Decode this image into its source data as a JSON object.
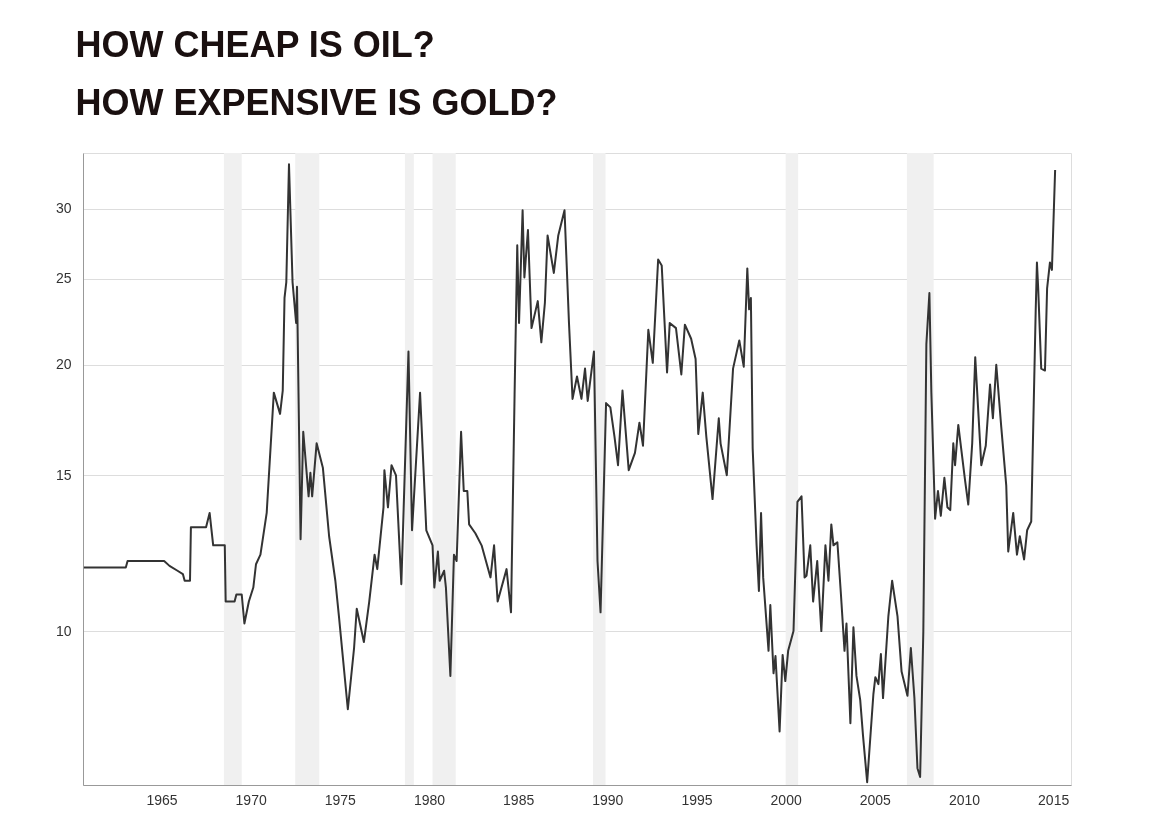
{
  "chart_data": {
    "type": "line",
    "title": "HOW CHEAP IS OIL?",
    "subtitle": "HOW EXPENSIVE IS GOLD?",
    "x": [
      1960.65,
      1963.0,
      1963.1,
      1965.15,
      1965.45,
      1965.9,
      1966.2,
      1966.3,
      1966.6,
      1966.65,
      1967.5,
      1967.7,
      1967.9,
      1968.55,
      1968.6,
      1969.1,
      1969.2,
      1969.5,
      1969.65,
      1969.9,
      1970.15,
      1970.3,
      1970.55,
      1970.9,
      1971.3,
      1971.65,
      1971.8,
      1971.9,
      1972.0,
      1972.15,
      1972.35,
      1972.55,
      1972.6,
      1972.8,
      1972.95,
      1973.25,
      1973.35,
      1973.45,
      1973.7,
      1974.05,
      1974.4,
      1974.75,
      1974.95,
      1975.45,
      1975.8,
      1975.95,
      1976.35,
      1976.65,
      1976.95,
      1977.1,
      1977.45,
      1977.5,
      1977.7,
      1977.9,
      1978.15,
      1978.45,
      1978.85,
      1979.05,
      1979.5,
      1979.85,
      1980.2,
      1980.3,
      1980.5,
      1980.6,
      1980.85,
      1980.95,
      1981.2,
      1981.4,
      1981.55,
      1981.8,
      1981.95,
      1982.15,
      1982.25,
      1982.6,
      1982.95,
      1983.45,
      1983.65,
      1983.85,
      1984.35,
      1984.6,
      1984.8,
      1984.95,
      1985.05,
      1985.25,
      1985.35,
      1985.55,
      1985.75,
      1986.1,
      1986.3,
      1986.5,
      1986.65,
      1987.0,
      1987.25,
      1987.6,
      1987.85,
      1988.05,
      1988.3,
      1988.55,
      1988.75,
      1988.9,
      1989.25,
      1989.45,
      1989.62,
      1989.93,
      1990.17,
      1990.4,
      1990.6,
      1990.85,
      1991.2,
      1991.55,
      1991.8,
      1992.0,
      1992.3,
      1992.55,
      1992.85,
      1993.05,
      1993.35,
      1993.5,
      1993.85,
      1994.15,
      1994.35,
      1994.7,
      1994.95,
      1995.1,
      1995.35,
      1995.55,
      1995.9,
      1996.25,
      1996.35,
      1996.7,
      1997.05,
      1997.4,
      1997.65,
      1997.85,
      1997.95,
      1998.05,
      1998.15,
      1998.37,
      1998.5,
      1998.62,
      1998.74,
      1999.04,
      1999.14,
      1999.32,
      1999.43,
      1999.66,
      1999.83,
      1999.98,
      2000.14,
      2000.44,
      2000.66,
      2000.89,
      2001.06,
      2001.17,
      2001.38,
      2001.54,
      2001.77,
      2002.0,
      2002.23,
      2002.4,
      2002.56,
      2002.68,
      2002.9,
      2003.1,
      2003.3,
      2003.41,
      2003.63,
      2003.8,
      2003.97,
      2004.18,
      2004.34,
      2004.57,
      2004.92,
      2005.03,
      2005.2,
      2005.34,
      2005.46,
      2005.76,
      2005.97,
      2006.27,
      2006.5,
      2006.83,
      2007.02,
      2007.22,
      2007.39,
      2007.54,
      2007.72,
      2007.89,
      2008.06,
      2008.17,
      2008.38,
      2008.54,
      2008.7,
      2008.9,
      2009.07,
      2009.23,
      2009.4,
      2009.5,
      2009.68,
      2010.06,
      2010.24,
      2010.46,
      2010.63,
      2010.97,
      2011.22,
      2011.46,
      2011.62,
      2011.81,
      2012.09,
      2012.37,
      2012.48,
      2012.76,
      2012.97,
      2013.13,
      2013.37,
      2013.54,
      2013.77,
      2014.02,
      2014.09,
      2014.16,
      2014.33,
      2014.54,
      2014.66,
      2014.82,
      2014.93,
      2015.11
    ],
    "series": [
      {
        "color": "#333333",
        "values": [
          11.8,
          11.8,
          12.0,
          12.0,
          11.85,
          11.7,
          11.6,
          11.4,
          11.4,
          13.1,
          13.1,
          13.6,
          12.5,
          12.5,
          10.8,
          10.8,
          11.0,
          11.0,
          10.2,
          10.8,
          11.2,
          11.9,
          12.2,
          13.6,
          18.6,
          17.6,
          18.7,
          23.8,
          24.8,
          33.7,
          24.8,
          22.3,
          24.5,
          12.7,
          16.8,
          14.2,
          15.1,
          14.2,
          16.3,
          15.3,
          12.8,
          11.4,
          10.4,
          8.16,
          9.57,
          10.6,
          9.72,
          10.8,
          12.2,
          11.75,
          13.8,
          15.2,
          13.8,
          15.4,
          15.0,
          11.3,
          20.7,
          13.0,
          18.6,
          13.0,
          12.5,
          11.2,
          12.3,
          11.4,
          11.7,
          11.2,
          8.9,
          12.2,
          12.0,
          16.8,
          14.4,
          14.4,
          13.2,
          12.9,
          12.5,
          11.5,
          12.5,
          10.8,
          11.75,
          10.5,
          18.5,
          27.3,
          22.3,
          29.9,
          25.1,
          28.4,
          22.0,
          23.6,
          21.2,
          23.5,
          28.0,
          25.4,
          28.0,
          29.9,
          22.3,
          18.3,
          19.4,
          18.3,
          19.8,
          18.2,
          20.7,
          12.0,
          10.5,
          18.1,
          17.9,
          16.6,
          15.4,
          18.7,
          15.2,
          15.9,
          17.2,
          16.2,
          21.9,
          20.1,
          26.3,
          25.9,
          19.6,
          22.3,
          22.0,
          19.5,
          22.2,
          21.4,
          20.3,
          16.7,
          18.6,
          16.6,
          14.1,
          17.4,
          16.3,
          15.0,
          19.8,
          21.3,
          19.9,
          25.7,
          23.1,
          23.8,
          16.1,
          12.5,
          11.1,
          13.6,
          11.5,
          9.5,
          10.7,
          8.96,
          9.37,
          7.7,
          9.4,
          8.78,
          9.5,
          10.0,
          14.0,
          14.2,
          11.5,
          11.55,
          12.5,
          10.8,
          12.0,
          10.0,
          12.5,
          11.4,
          13.2,
          12.5,
          12.6,
          11.0,
          9.5,
          10.2,
          7.87,
          10.1,
          8.9,
          8.36,
          7.61,
          6.75,
          8.49,
          8.87,
          8.71,
          9.42,
          8.4,
          10.4,
          11.4,
          10.4,
          9.0,
          8.45,
          9.57,
          8.4,
          7.0,
          6.84,
          10.0,
          21.1,
          24.1,
          18.6,
          13.4,
          14.4,
          13.5,
          14.9,
          13.8,
          13.7,
          16.3,
          15.4,
          17.1,
          14.8,
          13.9,
          16.3,
          20.4,
          15.4,
          16.2,
          19.0,
          17.4,
          20.0,
          17.0,
          14.6,
          12.3,
          13.6,
          12.2,
          12.8,
          12.05,
          13.0,
          13.3,
          23.0,
          26.1,
          24.4,
          19.8,
          19.7,
          24.4,
          26.1,
          25.6,
          33.2
        ]
      }
    ],
    "xlim": [
      1960.6,
      2016.0
    ],
    "xticks": [
      1965,
      1970,
      1975,
      1980,
      1985,
      1990,
      1995,
      2000,
      2005,
      2010,
      2015
    ],
    "ylim": [
      6.7,
      34.7
    ],
    "yticks": [
      10,
      15,
      20,
      25,
      30
    ],
    "log": true,
    "grid": "y",
    "marker": "none",
    "line_style": "solid",
    "bands": [
      {
        "axis": "x",
        "from": 1968.5,
        "to": 1969.5,
        "color": "#f0f0f0"
      },
      {
        "axis": "x",
        "from": 1972.5,
        "to": 1973.85,
        "color": "#f0f0f0"
      },
      {
        "axis": "x",
        "from": 1978.65,
        "to": 1979.15,
        "color": "#f0f0f0"
      },
      {
        "axis": "x",
        "from": 1980.2,
        "to": 1981.5,
        "color": "#f0f0f0"
      },
      {
        "axis": "x",
        "from": 1989.2,
        "to": 1989.9,
        "color": "#f0f0f0"
      },
      {
        "axis": "x",
        "from": 2000.0,
        "to": 2000.7,
        "color": "#f0f0f0"
      },
      {
        "axis": "x",
        "from": 2006.8,
        "to": 2008.3,
        "color": "#f0f0f0"
      }
    ]
  }
}
